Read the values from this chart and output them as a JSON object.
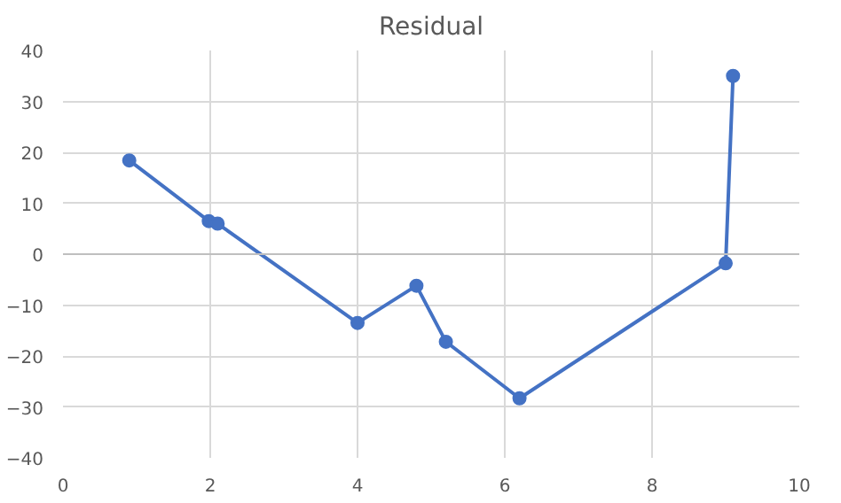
{
  "chart_data": {
    "type": "line",
    "title": "Residual",
    "x": [
      0.9,
      1.98,
      2.1,
      4.0,
      4.8,
      5.2,
      6.2,
      9.0,
      9.1
    ],
    "series": [
      {
        "color": "#4472c4",
        "values": [
          18.4,
          6.5,
          6.0,
          -13.5,
          -6.2,
          -17.2,
          -28.3,
          -1.8,
          35.0
        ]
      }
    ],
    "line_style": "solid",
    "marker": "circle",
    "xlim": [
      0,
      10
    ],
    "ylim": [
      -40,
      40
    ],
    "xticks": [
      0,
      2,
      4,
      6,
      8,
      10
    ],
    "yticks": [
      -40,
      -30,
      -20,
      -10,
      0,
      10,
      20,
      30,
      40
    ],
    "grid": true
  }
}
